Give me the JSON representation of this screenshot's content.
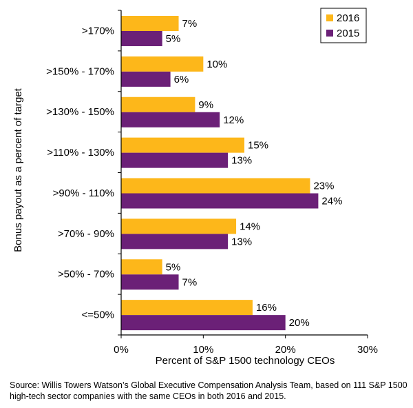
{
  "chart_data": {
    "type": "bar",
    "orientation": "horizontal",
    "categories": [
      ">170%",
      ">150% - 170%",
      ">130% - 150%",
      ">110% - 130%",
      ">90% - 110%",
      ">70% - 90%",
      ">50% - 70%",
      "<=50%"
    ],
    "series": [
      {
        "name": "2016",
        "color": "#FDB71A",
        "values": [
          7,
          10,
          9,
          15,
          23,
          14,
          5,
          16
        ]
      },
      {
        "name": "2015",
        "color": "#6B2077",
        "values": [
          5,
          6,
          12,
          13,
          24,
          13,
          7,
          20
        ]
      }
    ],
    "xlabel": "Percent of S&P 1500 technology CEOs",
    "ylabel": "Bonus payout as a percent of target",
    "xlim": [
      0,
      30
    ],
    "xticks": [
      "0%",
      "10%",
      "20%",
      "30%"
    ],
    "value_suffix": "%",
    "grid": false,
    "legend_position": "top-right"
  },
  "source_note": "Source: Willis Towers Watson’s Global Executive Compensation Analysis Team, based on 111 S&P 1500 high-tech sector companies with the same CEOs in both 2016 and 2015."
}
